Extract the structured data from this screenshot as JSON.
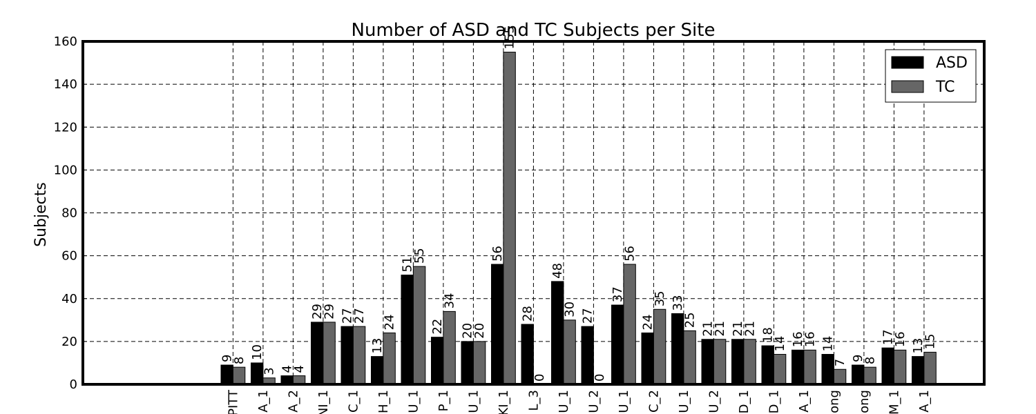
{
  "chart_data": {
    "type": "bar",
    "title": "Number of ASD and TC Subjects per Site",
    "xlabel": "",
    "ylabel": "Subjects",
    "ylim": [
      0,
      160
    ],
    "yticks": [
      0,
      20,
      40,
      60,
      80,
      100,
      120,
      140,
      160
    ],
    "grid": true,
    "legend_position": "top-right",
    "categories": [
      "PITT",
      "A_1",
      "A_2",
      "NI_1",
      "C_1",
      "H_1",
      "U_1",
      "P_1",
      "U_1",
      "KI_1",
      "L_3",
      "U_1",
      "U_2",
      "U_1",
      "C_2",
      "U_1",
      "U_2",
      "D_1",
      "D_1",
      "A_1",
      "ong",
      "ong",
      "M_1",
      "A_1"
    ],
    "series": [
      {
        "name": "ASD",
        "color": "#000000",
        "values": [
          9,
          10,
          4,
          29,
          27,
          13,
          51,
          22,
          20,
          56,
          28,
          48,
          27,
          37,
          24,
          33,
          21,
          21,
          18,
          16,
          14,
          9,
          17,
          13
        ]
      },
      {
        "name": "TC",
        "color": "#666666",
        "values": [
          8,
          3,
          4,
          29,
          27,
          24,
          55,
          34,
          20,
          155,
          0,
          30,
          0,
          56,
          35,
          25,
          21,
          21,
          14,
          16,
          7,
          8,
          16,
          15
        ]
      }
    ]
  }
}
